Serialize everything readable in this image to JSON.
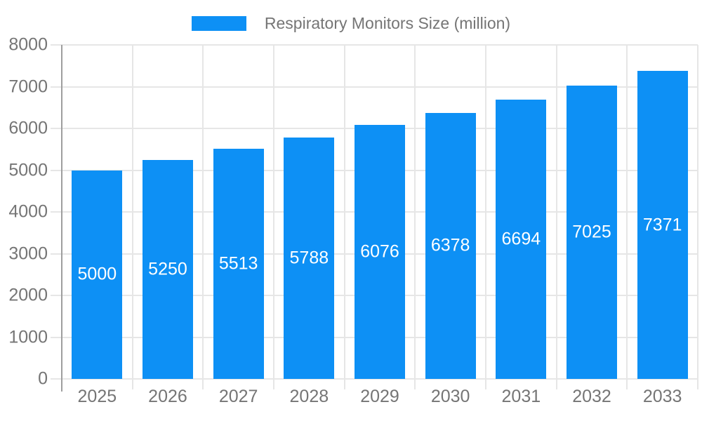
{
  "colors": {
    "bar": "#0d90f5",
    "axis_line": "#9e9e9e",
    "gridline": "#e6e6e6",
    "axis_text": "#757575",
    "bar_label_text": "#ffffff",
    "background": "#ffffff"
  },
  "legend": {
    "label": "Respiratory Monitors Size (million)"
  },
  "chart_data": {
    "type": "bar",
    "title": "Respiratory Monitors Size (million)",
    "categories": [
      "2025",
      "2026",
      "2027",
      "2028",
      "2029",
      "2030",
      "2031",
      "2032",
      "2033"
    ],
    "values": [
      5000,
      5250,
      5513,
      5788,
      6076,
      6378,
      6694,
      7025,
      7371
    ],
    "xlabel": "",
    "ylabel": "",
    "ylim": [
      0,
      8000
    ],
    "yticks": [
      0,
      1000,
      2000,
      3000,
      4000,
      5000,
      6000,
      7000,
      8000
    ],
    "grid": "both",
    "legend_position": "top-center",
    "value_labels_position": "inside-center"
  }
}
